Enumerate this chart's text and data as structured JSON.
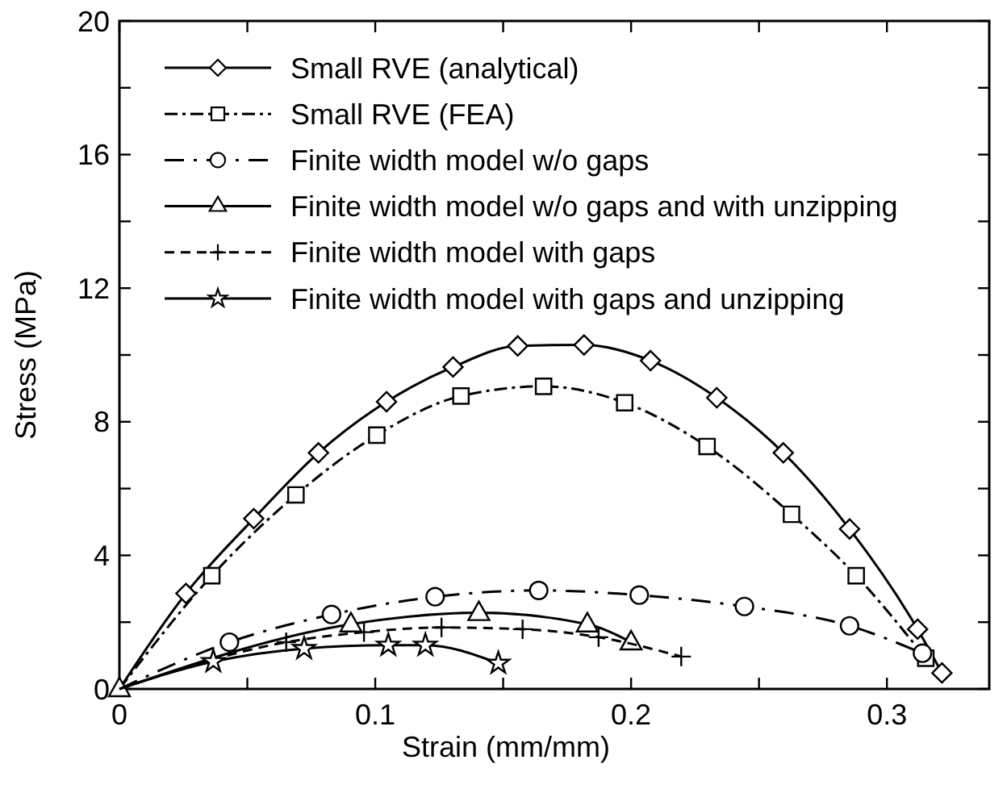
{
  "chart_data": {
    "type": "line",
    "xlabel": "Strain (mm/mm)",
    "ylabel": "Stress (MPa)",
    "xlim": [
      0,
      0.34
    ],
    "ylim": [
      0,
      20
    ],
    "xticks": [
      0,
      {
        "value": 0.05,
        "label": null
      },
      0.1,
      {
        "value": 0.15,
        "label": null
      },
      0.2,
      {
        "value": 0.25,
        "label": null
      },
      0.3
    ],
    "yticks": [
      0,
      {
        "value": 2,
        "label": null
      },
      4,
      {
        "value": 6,
        "label": null
      },
      8,
      {
        "value": 10,
        "label": null
      },
      12,
      {
        "value": 14,
        "label": null
      },
      16,
      {
        "value": 18,
        "label": null
      },
      20
    ],
    "grid": false,
    "legend": "top left",
    "series": [
      {
        "name": "Small RVE (analytical)",
        "color": "#000000",
        "marker": "diamond",
        "line_style": "solid",
        "x": [
          0,
          0.026,
          0.0525,
          0.0778,
          0.1044,
          0.1304,
          0.1557,
          0.1816,
          0.2076,
          0.2335,
          0.2595,
          0.2854,
          0.312,
          0.3215
        ],
        "values": [
          0,
          2.86,
          5.1,
          7.07,
          8.6,
          9.64,
          10.27,
          10.3,
          9.83,
          8.72,
          7.07,
          4.79,
          1.79,
          0.48
        ]
      },
      {
        "name": "Small RVE (FEA)",
        "color": "#000000",
        "marker": "square",
        "line_style": "dashdot",
        "x": [
          0,
          0.0361,
          0.069,
          0.1006,
          0.1335,
          0.1658,
          0.1975,
          0.2297,
          0.2627,
          0.288,
          0.3152
        ],
        "values": [
          0,
          3.39,
          5.81,
          7.6,
          8.77,
          9.06,
          8.57,
          7.26,
          5.23,
          3.39,
          0.92
        ]
      },
      {
        "name": "Finite width model w/o gaps",
        "color": "#000000",
        "marker": "circle",
        "line_style": "longdashdot",
        "x": [
          0,
          0.043,
          0.0829,
          0.1234,
          0.1639,
          0.2032,
          0.2443,
          0.2854,
          0.3139
        ],
        "values": [
          0,
          1.4,
          2.23,
          2.76,
          2.95,
          2.81,
          2.47,
          1.89,
          1.07
        ]
      },
      {
        "name": "Finite width model w/o gaps and with unzipping",
        "color": "#000000",
        "marker": "triangle",
        "line_style": "solid",
        "x": [
          0,
          0.0905,
          0.1405,
          0.1829,
          0.2
        ],
        "values": [
          0,
          1.94,
          2.28,
          1.94,
          1.4
        ]
      },
      {
        "name": "Finite width model with gaps",
        "color": "#000000",
        "marker": "cross",
        "line_style": "dashed",
        "x": [
          0,
          0.0652,
          0.0956,
          0.1259,
          0.1576,
          0.1873,
          0.2196
        ],
        "values": [
          0,
          1.4,
          1.7,
          1.84,
          1.79,
          1.55,
          0.97
        ]
      },
      {
        "name": "Finite width model with gaps and unzipping",
        "color": "#000000",
        "marker": "star",
        "line_style": "solid",
        "x": [
          0,
          0.0367,
          0.0722,
          0.1051,
          0.1196,
          0.1481
        ],
        "values": [
          0,
          0.82,
          1.21,
          1.31,
          1.31,
          0.77
        ]
      }
    ]
  }
}
